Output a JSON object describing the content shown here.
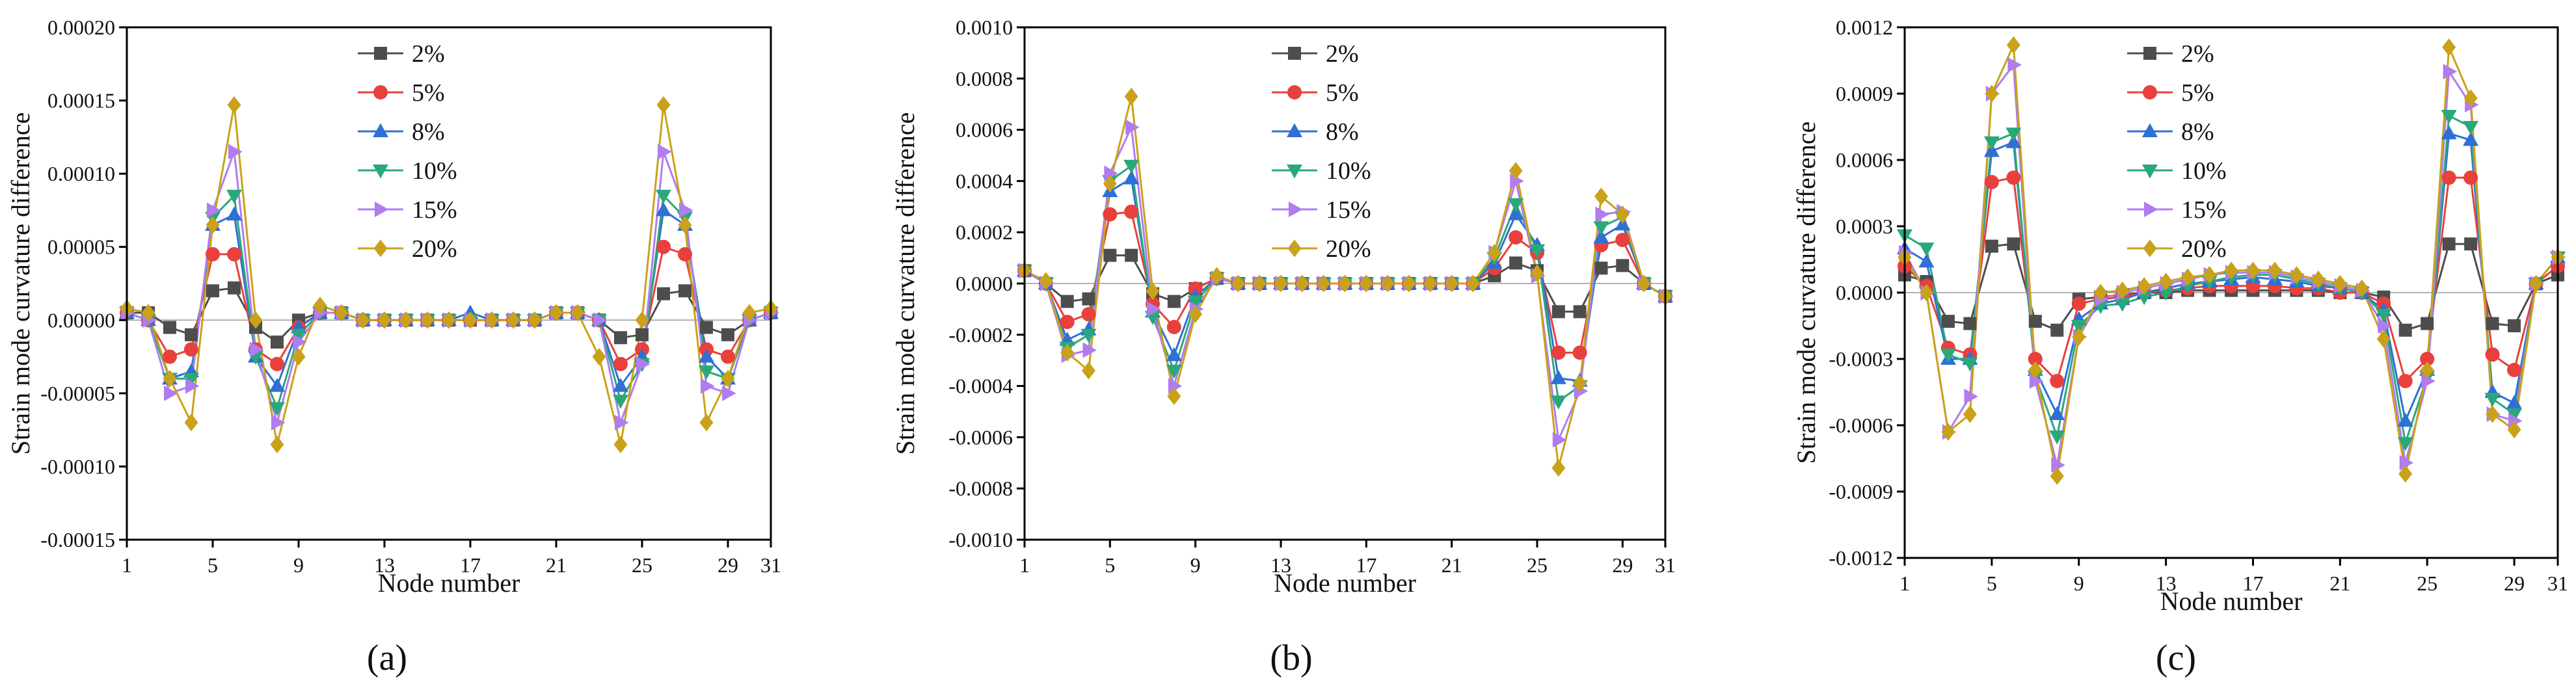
{
  "colors": {
    "2%": "#4d4d4d",
    "5%": "#e8403c",
    "8%": "#2f6fd6",
    "10%": "#2aa87a",
    "15%": "#b07cf0",
    "20%": "#c9a21a"
  },
  "chart_data": [
    {
      "type": "line",
      "panel_label": "(a)",
      "xlabel": "Node number",
      "ylabel": "Strain mode curvature difference",
      "xticks": [
        "1",
        "5",
        "9",
        "13",
        "17",
        "21",
        "25",
        "29",
        "31"
      ],
      "yticks": [
        "-0.00015",
        "-0.00010",
        "-0.00005",
        "0.00000",
        "0.00005",
        "0.00010",
        "0.00015",
        "0.00020"
      ],
      "xlim": [
        1,
        31
      ],
      "ylim": [
        -0.00015,
        0.0002
      ],
      "legend_position": "top-center",
      "x": [
        1,
        2,
        3,
        4,
        5,
        6,
        7,
        8,
        9,
        10,
        11,
        12,
        13,
        14,
        15,
        16,
        17,
        18,
        19,
        20,
        21,
        22,
        23,
        24,
        25,
        26,
        27,
        28,
        29,
        30,
        31
      ],
      "series": [
        {
          "name": "2%",
          "marker": "square",
          "values": [
            5e-06,
            5e-06,
            -5e-06,
            -1e-05,
            2e-05,
            2.2e-05,
            -5e-06,
            -1.5e-05,
            0.0,
            5e-06,
            5e-06,
            0.0,
            0.0,
            0.0,
            0.0,
            0.0,
            0.0,
            0.0,
            0.0,
            0.0,
            5e-06,
            5e-06,
            0.0,
            -1.2e-05,
            -1e-05,
            1.8e-05,
            2e-05,
            -5e-06,
            -1e-05,
            0.0,
            5e-06
          ]
        },
        {
          "name": "5%",
          "marker": "circle",
          "values": [
            5e-06,
            0.0,
            -2.5e-05,
            -2e-05,
            4.5e-05,
            4.5e-05,
            -2e-05,
            -3e-05,
            -5e-06,
            5e-06,
            5e-06,
            0.0,
            0.0,
            0.0,
            0.0,
            0.0,
            0.0,
            0.0,
            0.0,
            0.0,
            5e-06,
            5e-06,
            0.0,
            -3e-05,
            -2e-05,
            5e-05,
            4.5e-05,
            -2e-05,
            -2.5e-05,
            0.0,
            5e-06
          ]
        },
        {
          "name": "8%",
          "marker": "triangle-up",
          "values": [
            5e-06,
            0.0,
            -4e-05,
            -3.5e-05,
            6.5e-05,
            7.2e-05,
            -2.5e-05,
            -4.5e-05,
            -5e-06,
            5e-06,
            5e-06,
            0.0,
            0.0,
            0.0,
            0.0,
            0.0,
            5e-06,
            0.0,
            0.0,
            0.0,
            5e-06,
            5e-06,
            0.0,
            -4.5e-05,
            -2.5e-05,
            7.5e-05,
            6.5e-05,
            -2.5e-05,
            -4e-05,
            0.0,
            5e-06
          ]
        },
        {
          "name": "10%",
          "marker": "triangle-down",
          "values": [
            5e-06,
            0.0,
            -4e-05,
            -4e-05,
            7e-05,
            8.5e-05,
            -2.5e-05,
            -6e-05,
            -1e-05,
            5e-06,
            5e-06,
            0.0,
            0.0,
            0.0,
            0.0,
            0.0,
            0.0,
            0.0,
            0.0,
            0.0,
            5e-06,
            5e-06,
            0.0,
            -5.5e-05,
            -3e-05,
            8.5e-05,
            7e-05,
            -3.5e-05,
            -4e-05,
            0.0,
            5e-06
          ]
        },
        {
          "name": "15%",
          "marker": "triangle-right",
          "values": [
            5e-06,
            0.0,
            -5e-05,
            -4.5e-05,
            7.5e-05,
            0.000115,
            -2e-05,
            -7e-05,
            -1.5e-05,
            5e-06,
            5e-06,
            0.0,
            0.0,
            0.0,
            0.0,
            0.0,
            0.0,
            0.0,
            0.0,
            0.0,
            5e-06,
            5e-06,
            0.0,
            -7e-05,
            -3e-05,
            0.000115,
            7.5e-05,
            -4.5e-05,
            -5e-05,
            0.0,
            5e-06
          ]
        },
        {
          "name": "20%",
          "marker": "diamond",
          "values": [
            8e-06,
            5e-06,
            -4e-05,
            -7e-05,
            6.5e-05,
            0.000147,
            0.0,
            -8.5e-05,
            -2.5e-05,
            1e-05,
            5e-06,
            0.0,
            0.0,
            0.0,
            0.0,
            0.0,
            0.0,
            0.0,
            0.0,
            0.0,
            5e-06,
            5e-06,
            -2.5e-05,
            -8.5e-05,
            0.0,
            0.000147,
            6.5e-05,
            -7e-05,
            -4e-05,
            5e-06,
            8e-06
          ]
        }
      ]
    },
    {
      "type": "line",
      "panel_label": "(b)",
      "xlabel": "Node number",
      "ylabel": "Strain mode curvature difference",
      "xticks": [
        "1",
        "5",
        "9",
        "13",
        "17",
        "21",
        "25",
        "29",
        "31"
      ],
      "yticks": [
        "-0.0010",
        "-0.0008",
        "-0.0006",
        "-0.0004",
        "-0.0002",
        "0.0000",
        "0.0002",
        "0.0004",
        "0.0006",
        "0.0008",
        "0.0010"
      ],
      "xlim": [
        1,
        31
      ],
      "ylim": [
        -0.001,
        0.001
      ],
      "legend_position": "top-center",
      "x": [
        1,
        2,
        3,
        4,
        5,
        6,
        7,
        8,
        9,
        10,
        11,
        12,
        13,
        14,
        15,
        16,
        17,
        18,
        19,
        20,
        21,
        22,
        23,
        24,
        25,
        26,
        27,
        28,
        29,
        30,
        31
      ],
      "series": [
        {
          "name": "2%",
          "marker": "square",
          "values": [
            5e-05,
            0.0,
            -7e-05,
            -6e-05,
            0.00011,
            0.00011,
            -4e-05,
            -7e-05,
            -2e-05,
            2e-05,
            0.0,
            0.0,
            0.0,
            0.0,
            0.0,
            0.0,
            0.0,
            0.0,
            0.0,
            0.0,
            0.0,
            0.0,
            3e-05,
            8e-05,
            5e-05,
            -0.00011,
            -0.00011,
            6e-05,
            7e-05,
            0.0,
            -5e-05
          ]
        },
        {
          "name": "5%",
          "marker": "circle",
          "values": [
            5e-05,
            0.0,
            -0.00015,
            -0.00012,
            0.00027,
            0.00028,
            -8e-05,
            -0.00017,
            -2e-05,
            2e-05,
            0.0,
            0.0,
            0.0,
            0.0,
            0.0,
            0.0,
            0.0,
            0.0,
            0.0,
            0.0,
            0.0,
            0.0,
            6e-05,
            0.00018,
            0.00012,
            -0.00027,
            -0.00027,
            0.00015,
            0.00017,
            0.0,
            -5e-05
          ]
        },
        {
          "name": "8%",
          "marker": "triangle-up",
          "values": [
            5e-05,
            0.0,
            -0.00022,
            -0.00018,
            0.00036,
            0.00041,
            -0.00011,
            -0.00028,
            -5e-05,
            2e-05,
            0.0,
            0.0,
            0.0,
            0.0,
            0.0,
            0.0,
            0.0,
            0.0,
            0.0,
            0.0,
            0.0,
            0.0,
            8e-05,
            0.00027,
            0.00015,
            -0.00037,
            -0.00038,
            0.00018,
            0.00023,
            0.0,
            -5e-05
          ]
        },
        {
          "name": "10%",
          "marker": "triangle-down",
          "values": [
            5e-05,
            0.0,
            -0.00025,
            -0.0002,
            0.0004,
            0.00046,
            -0.00013,
            -0.00034,
            -7e-05,
            2e-05,
            0.0,
            0.0,
            0.0,
            0.0,
            0.0,
            0.0,
            0.0,
            0.0,
            0.0,
            0.0,
            0.0,
            0.0,
            0.0001,
            0.00031,
            0.00013,
            -0.00046,
            -0.0004,
            0.00022,
            0.00026,
            0.0,
            -5e-05
          ]
        },
        {
          "name": "15%",
          "marker": "triangle-right",
          "values": [
            5e-05,
            0.0,
            -0.00028,
            -0.00026,
            0.00043,
            0.00061,
            -0.0001,
            -0.0004,
            -0.0001,
            2e-05,
            0.0,
            0.0,
            0.0,
            0.0,
            0.0,
            0.0,
            0.0,
            0.0,
            0.0,
            0.0,
            0.0,
            0.0,
            0.00012,
            0.0004,
            3e-05,
            -0.00061,
            -0.00042,
            0.00027,
            0.00028,
            0.0,
            -5e-05
          ]
        },
        {
          "name": "20%",
          "marker": "diamond",
          "values": [
            5e-05,
            1e-05,
            -0.00027,
            -0.00034,
            0.00039,
            0.00073,
            -3e-05,
            -0.00044,
            -0.00012,
            3e-05,
            0.0,
            0.0,
            0.0,
            0.0,
            0.0,
            0.0,
            0.0,
            0.0,
            0.0,
            0.0,
            0.0,
            0.0,
            0.00012,
            0.00044,
            4e-05,
            -0.00072,
            -0.00039,
            0.00034,
            0.00027,
            0.0,
            -5e-05
          ]
        }
      ]
    },
    {
      "type": "line",
      "panel_label": "(c)",
      "xlabel": "Node number",
      "ylabel": "Strain mode curvature difference",
      "xticks": [
        "1",
        "5",
        "9",
        "13",
        "17",
        "21",
        "25",
        "29",
        "31"
      ],
      "yticks": [
        "-0.0012",
        "-0.0009",
        "-0.0006",
        "-0.0003",
        "0.0000",
        "0.0003",
        "0.0006",
        "0.0009",
        "0.0012"
      ],
      "xlim": [
        1,
        31
      ],
      "ylim": [
        -0.0012,
        0.0012
      ],
      "legend_position": "top-center",
      "x": [
        1,
        2,
        3,
        4,
        5,
        6,
        7,
        8,
        9,
        10,
        11,
        12,
        13,
        14,
        15,
        16,
        17,
        18,
        19,
        20,
        21,
        22,
        23,
        24,
        25,
        26,
        27,
        28,
        29,
        30,
        31
      ],
      "series": [
        {
          "name": "2%",
          "marker": "square",
          "values": [
            8e-05,
            5e-05,
            -0.00013,
            -0.00014,
            0.00021,
            0.00022,
            -0.00013,
            -0.00017,
            -3e-05,
            -2e-05,
            -1e-05,
            0.0,
            0.0,
            1e-05,
            1e-05,
            1e-05,
            1e-05,
            1e-05,
            1e-05,
            1e-05,
            0.0,
            0.0,
            -2e-05,
            -0.00017,
            -0.00014,
            0.00022,
            0.00022,
            -0.00014,
            -0.00015,
            4e-05,
            8e-05
          ]
        },
        {
          "name": "5%",
          "marker": "circle",
          "values": [
            0.00012,
            3e-05,
            -0.00025,
            -0.00028,
            0.0005,
            0.00052,
            -0.0003,
            -0.0004,
            -5e-05,
            -3e-05,
            -2e-05,
            0.0,
            1e-05,
            2e-05,
            3e-05,
            3e-05,
            3e-05,
            3e-05,
            2e-05,
            2e-05,
            0.0,
            0.0,
            -5e-05,
            -0.0004,
            -0.0003,
            0.00052,
            0.00052,
            -0.00028,
            -0.00035,
            4e-05,
            0.00012
          ]
        },
        {
          "name": "8%",
          "marker": "triangle-up",
          "values": [
            0.0002,
            0.00014,
            -0.0003,
            -0.0003,
            0.00064,
            0.00068,
            -0.00035,
            -0.00055,
            -0.00012,
            -5e-05,
            -3e-05,
            0.0,
            2e-05,
            4e-05,
            5e-05,
            6e-05,
            7e-05,
            6e-05,
            5e-05,
            3e-05,
            2e-05,
            0.0,
            -8e-05,
            -0.00058,
            -0.00035,
            0.00072,
            0.00069,
            -0.00045,
            -0.0005,
            4e-05,
            0.00016
          ]
        },
        {
          "name": "10%",
          "marker": "triangle-down",
          "values": [
            0.00026,
            0.0002,
            -0.00028,
            -0.00032,
            0.00068,
            0.00072,
            -0.00038,
            -0.00065,
            -0.00015,
            -6e-05,
            -5e-05,
            -2e-05,
            0.0,
            3e-05,
            5e-05,
            7e-05,
            8e-05,
            8e-05,
            6e-05,
            4e-05,
            2e-05,
            0.0,
            -0.0001,
            -0.00068,
            -0.00038,
            0.0008,
            0.00075,
            -0.00048,
            -0.00055,
            4e-05,
            0.00016
          ]
        },
        {
          "name": "15%",
          "marker": "triangle-right",
          "values": [
            0.00018,
            0.0,
            -0.00063,
            -0.00047,
            0.0009,
            0.00103,
            -0.0004,
            -0.00078,
            -0.0002,
            -3e-05,
            0.0,
            2e-05,
            4e-05,
            6e-05,
            8e-05,
            9e-05,
            9e-05,
            9e-05,
            7e-05,
            5e-05,
            3e-05,
            1e-05,
            -0.00015,
            -0.00077,
            -0.0004,
            0.001,
            0.00085,
            -0.00055,
            -0.00058,
            4e-05,
            0.00016
          ]
        },
        {
          "name": "20%",
          "marker": "diamond",
          "values": [
            0.00016,
            0.0,
            -0.00063,
            -0.00055,
            0.0009,
            0.00112,
            -0.00035,
            -0.00083,
            -0.0002,
            0.0,
            1e-05,
            3e-05,
            5e-05,
            7e-05,
            8e-05,
            0.0001,
            0.0001,
            0.0001,
            8e-05,
            6e-05,
            4e-05,
            2e-05,
            -0.00021,
            -0.00082,
            -0.00035,
            0.00111,
            0.00088,
            -0.00055,
            -0.00062,
            4e-05,
            0.00016
          ]
        }
      ]
    }
  ]
}
